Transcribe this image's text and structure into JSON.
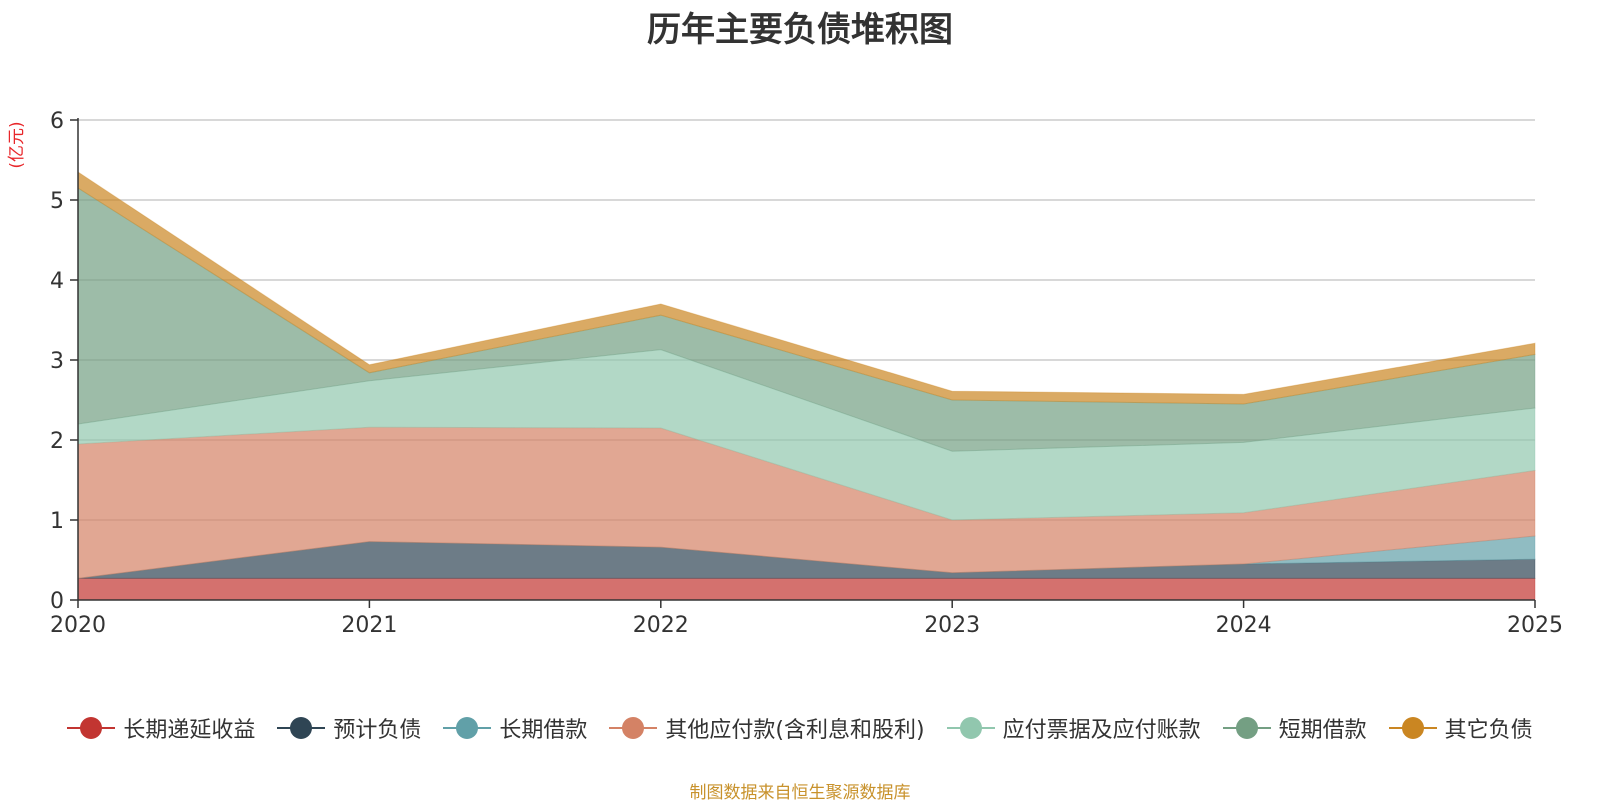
{
  "chart_data": {
    "type": "area",
    "stacked": true,
    "title": "历年主要负债堆积图",
    "ylabel": "(亿元)",
    "xlabel": "",
    "ylim": [
      0,
      6
    ],
    "yticks": [
      "0",
      "1",
      "2",
      "3",
      "4",
      "5",
      "6"
    ],
    "categories": [
      "2020",
      "2021",
      "2022",
      "2023",
      "2024",
      "2025"
    ],
    "grid": true,
    "series": [
      {
        "name": "长期递延收益",
        "color": "#c23531",
        "values": [
          0.27,
          0.27,
          0.27,
          0.27,
          0.27,
          0.27
        ]
      },
      {
        "name": "预计负债",
        "color": "#2f4554",
        "values": [
          0.0,
          0.46,
          0.39,
          0.07,
          0.18,
          0.24
        ]
      },
      {
        "name": "长期借款",
        "color": "#61a0a8",
        "values": [
          0.0,
          0.0,
          0.0,
          0.0,
          0.0,
          0.29
        ]
      },
      {
        "name": "其他应付款(含利息和股利)",
        "color": "#d48265",
        "values": [
          1.68,
          1.43,
          1.49,
          0.66,
          0.64,
          0.82
        ]
      },
      {
        "name": "应付票据及应付账款",
        "color": "#91c7ae",
        "values": [
          0.25,
          0.58,
          0.98,
          0.86,
          0.88,
          0.78
        ]
      },
      {
        "name": "短期借款",
        "color": "#749f83",
        "values": [
          2.95,
          0.1,
          0.43,
          0.64,
          0.48,
          0.67
        ]
      },
      {
        "name": "其它负债",
        "color": "#ca8622",
        "values": [
          0.2,
          0.1,
          0.14,
          0.11,
          0.12,
          0.14
        ]
      }
    ],
    "legend_position": "bottom"
  },
  "footer": "制图数据来自恒生聚源数据库"
}
